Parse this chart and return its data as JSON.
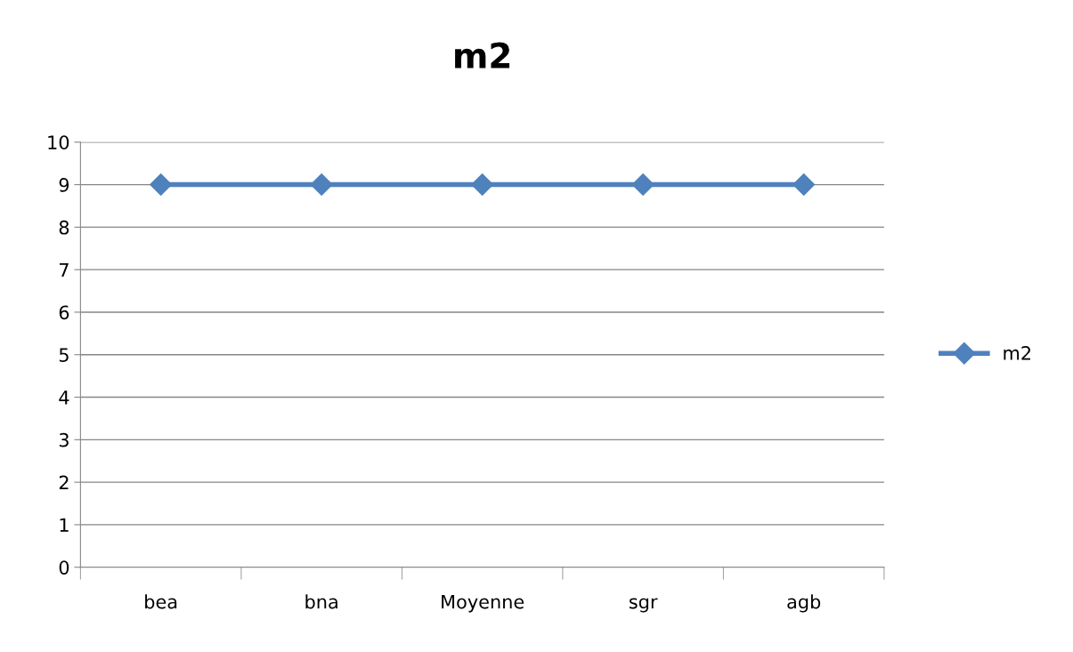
{
  "chart_data": {
    "type": "line",
    "title": "m2",
    "categories": [
      "bea",
      "bna",
      "Moyenne",
      "sgr",
      "agb"
    ],
    "series": [
      {
        "name": "m2",
        "color": "#4f81bd",
        "values": [
          9,
          9,
          9,
          9,
          9
        ]
      }
    ],
    "ylim": [
      0,
      10
    ],
    "yticks": [
      0,
      1,
      2,
      3,
      4,
      5,
      6,
      7,
      8,
      9,
      10
    ],
    "grid": "y",
    "legend": "right",
    "marker": "diamond",
    "line_style": "solid"
  }
}
